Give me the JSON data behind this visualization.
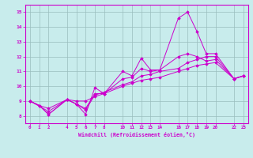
{
  "xlabel": "Windchill (Refroidissement éolien,°C)",
  "background_color": "#c8ecec",
  "grid_color": "#b0d0d0",
  "line_color": "#cc00cc",
  "x_ticks": [
    0,
    1,
    2,
    4,
    5,
    6,
    7,
    8,
    10,
    11,
    12,
    13,
    14,
    16,
    17,
    18,
    19,
    20,
    22,
    23
  ],
  "ylim": [
    7.5,
    15.5
  ],
  "xlim": [
    -0.5,
    23.5
  ],
  "yticks": [
    8,
    9,
    10,
    11,
    12,
    13,
    14,
    15
  ],
  "series": [
    {
      "x": [
        0,
        1,
        2,
        4,
        5,
        6,
        7,
        8,
        10,
        11,
        12,
        13,
        14,
        16,
        17,
        18,
        19,
        20,
        22,
        23
      ],
      "y": [
        9.0,
        8.7,
        8.1,
        9.1,
        8.8,
        8.1,
        9.9,
        9.5,
        11.0,
        10.7,
        11.9,
        11.1,
        11.1,
        14.6,
        15.0,
        13.7,
        12.2,
        12.2,
        10.5,
        10.7
      ]
    },
    {
      "x": [
        0,
        1,
        2,
        4,
        5,
        6,
        7,
        8,
        10,
        11,
        12,
        13,
        14,
        16,
        17,
        18,
        19,
        20,
        22,
        23
      ],
      "y": [
        9.0,
        8.7,
        8.1,
        9.1,
        8.8,
        8.5,
        9.5,
        9.5,
        10.5,
        10.6,
        11.2,
        11.0,
        11.1,
        12.0,
        12.2,
        12.0,
        11.7,
        11.8,
        10.5,
        10.7
      ]
    },
    {
      "x": [
        0,
        2,
        4,
        5,
        6,
        7,
        8,
        10,
        11,
        12,
        13,
        14,
        16,
        17,
        18,
        19,
        20,
        22,
        23
      ],
      "y": [
        9.0,
        8.3,
        9.1,
        8.8,
        8.4,
        9.4,
        9.6,
        10.1,
        10.3,
        10.7,
        10.8,
        11.0,
        11.2,
        11.6,
        11.8,
        12.0,
        12.0,
        10.5,
        10.7
      ]
    },
    {
      "x": [
        0,
        1,
        2,
        4,
        5,
        6,
        7,
        8,
        10,
        11,
        12,
        13,
        14,
        16,
        17,
        18,
        19,
        20,
        22,
        23
      ],
      "y": [
        9.0,
        8.7,
        8.5,
        9.1,
        9.0,
        9.0,
        9.3,
        9.5,
        10.0,
        10.2,
        10.4,
        10.5,
        10.6,
        11.0,
        11.2,
        11.4,
        11.5,
        11.6,
        10.5,
        10.7
      ]
    }
  ]
}
